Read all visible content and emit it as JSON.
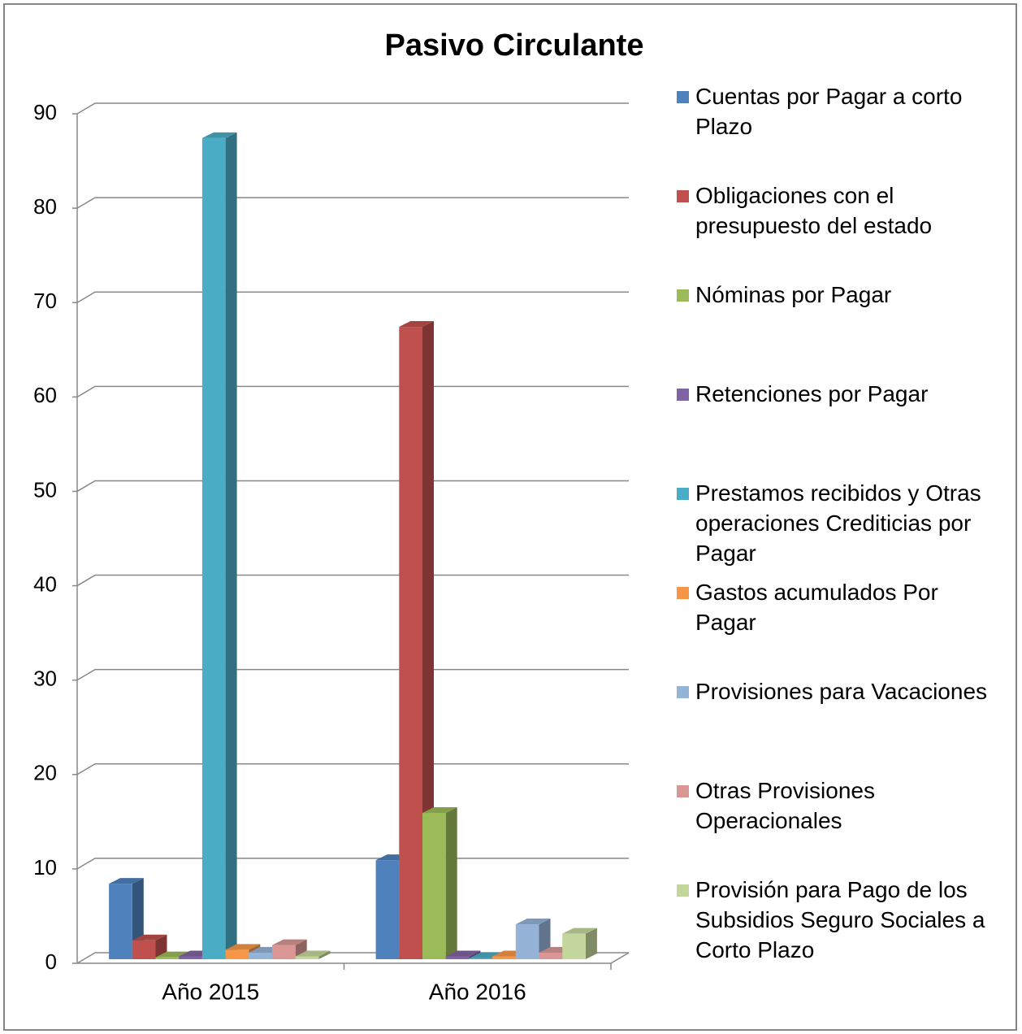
{
  "chart_data": {
    "type": "bar3d",
    "title": "Pasivo Circulante",
    "categories": [
      "Año 2015",
      "Año 2016"
    ],
    "series": [
      {
        "name": "Cuentas por Pagar a corto Plazo",
        "color": "#4F81BD",
        "values": [
          8,
          10.5
        ]
      },
      {
        "name": "Obligaciones con el presupuesto del estado",
        "color": "#C0504D",
        "values": [
          2,
          67
        ]
      },
      {
        "name": "Nóminas por Pagar",
        "color": "#9BBB59",
        "values": [
          0.2,
          15.5
        ]
      },
      {
        "name": "Retenciones por Pagar",
        "color": "#8064A2",
        "values": [
          0.3,
          0.3
        ]
      },
      {
        "name": "Prestamos recibidos y Otras operaciones Crediticias por Pagar",
        "color": "#4BACC6",
        "values": [
          87,
          0.1
        ]
      },
      {
        "name": "Gastos acumulados Por Pagar",
        "color": "#F79646",
        "values": [
          1,
          0.3
        ]
      },
      {
        "name": "Provisiones para Vacaciones",
        "color": "#95B3D7",
        "values": [
          0.7,
          3.7
        ]
      },
      {
        "name": "Otras Provisiones Operacionales",
        "color": "#D99694",
        "values": [
          1.5,
          0.7
        ]
      },
      {
        "name": "Provisión para Pago de los Subsidios Seguro Sociales a Corto Plazo",
        "color": "#C3D69B",
        "values": [
          0.3,
          2.7
        ]
      }
    ],
    "ylim": [
      0,
      90
    ],
    "yticks": [
      0,
      10,
      20,
      30,
      40,
      50,
      60,
      70,
      80,
      90
    ],
    "grid": true,
    "legend": "right"
  }
}
